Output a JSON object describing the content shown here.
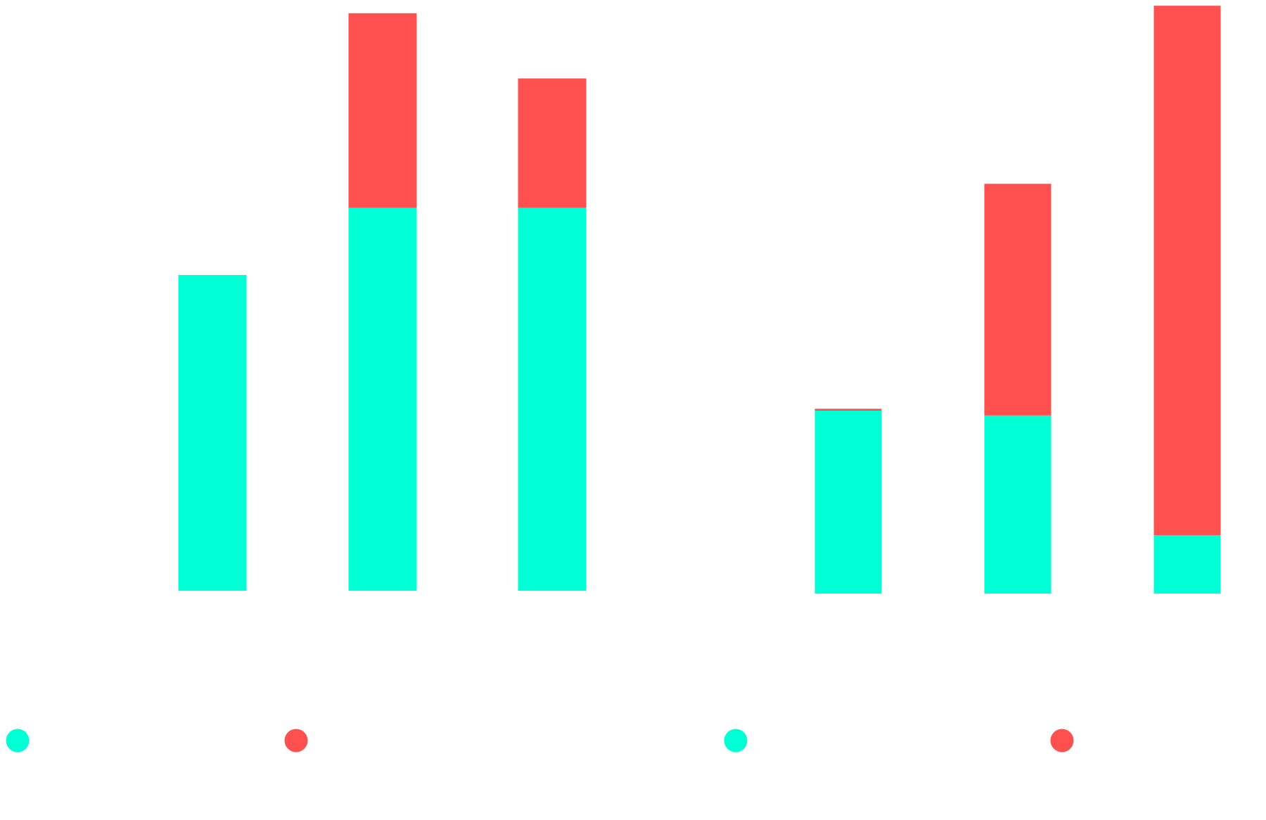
{
  "colors": {
    "series_a": "#00FFD5",
    "series_b": "#FF5050",
    "background": "#FFFFFF"
  },
  "chart_data": [
    {
      "type": "bar",
      "stacked": true,
      "title": "",
      "xlabel": "",
      "ylabel": "",
      "categories": [
        "",
        "",
        ""
      ],
      "ylim": [
        0,
        580
      ],
      "grid": false,
      "legend": {
        "placement": "bottom",
        "entries": [
          {
            "name": "",
            "color": "#00FFD5"
          },
          {
            "name": "",
            "color": "#FF5050"
          }
        ]
      },
      "series": [
        {
          "name": "",
          "color": "#00FFD5",
          "values": [
            310,
            376,
            376
          ]
        },
        {
          "name": "",
          "color": "#FF5050",
          "values": [
            0,
            191,
            127
          ]
        }
      ]
    },
    {
      "type": "bar",
      "stacked": true,
      "title": "",
      "xlabel": "",
      "ylabel": "",
      "categories": [
        "",
        "",
        ""
      ],
      "ylim": [
        0,
        620
      ],
      "grid": false,
      "legend": {
        "placement": "bottom",
        "entries": [
          {
            "name": "",
            "color": "#00FFD5"
          },
          {
            "name": "",
            "color": "#FF5050"
          }
        ]
      },
      "series": [
        {
          "name": "",
          "color": "#00FFD5",
          "values": [
            191,
            186,
            61
          ]
        },
        {
          "name": "",
          "color": "#FF5050",
          "values": [
            2,
            242,
            553
          ]
        }
      ]
    }
  ]
}
